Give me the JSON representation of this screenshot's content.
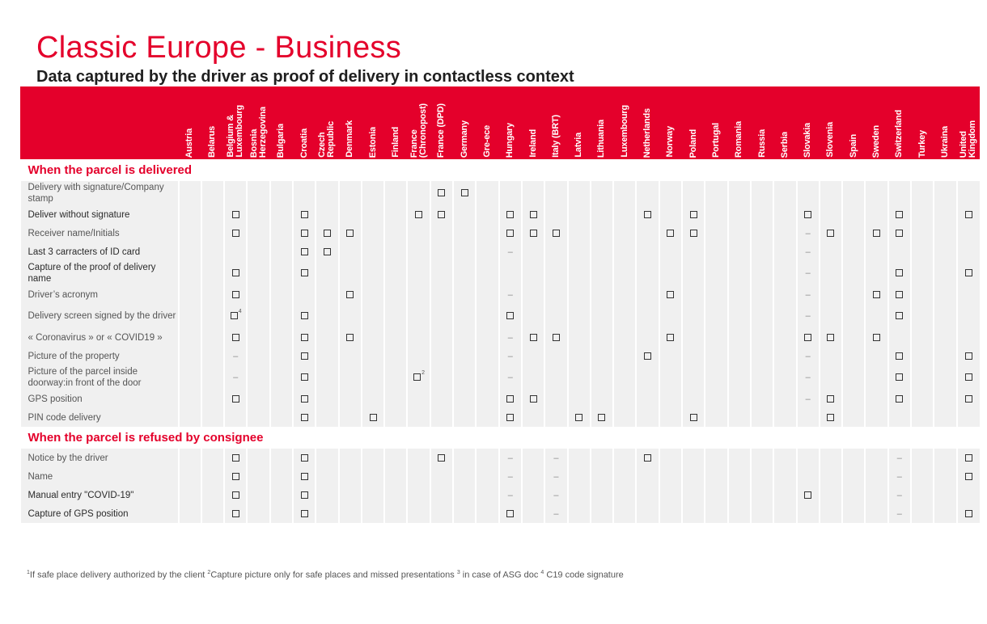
{
  "page": {
    "title": "Classic Europe - Business",
    "subtitle": "Data captured by the driver as proof of delivery in contactless context"
  },
  "colors": {
    "brand_red": "#e4002b",
    "row_bg": "#f0f0f0"
  },
  "legend": {
    "check": "checkbox-icon",
    "dash": "–"
  },
  "countries": [
    "Austria",
    "Belarus",
    "Belgium &\nLuxembourg",
    "Bosnia\nHerzegovina",
    "Bulgaria",
    "Croatia",
    "Czech\nRepublic",
    "Denmark",
    "Estonia",
    "Finland",
    "France\n(Chronopost)",
    "France (DPD)",
    "Germany",
    "Gre-ece",
    "Hungary",
    "Ireland",
    "Italy (BRT)",
    "Latvia",
    "Lithuania",
    "Luxembourg",
    "Netherlands",
    "Norway",
    "Poland",
    "Portugal",
    "Romania",
    "Russia",
    "Serbia",
    "Slovakia",
    "Slovenia",
    "Spain",
    "Sweden",
    "Switzerland",
    "Turkey",
    "Ukraina",
    "United\nKingdom"
  ],
  "sections": [
    {
      "title": "When the parcel is delivered",
      "rows": [
        {
          "label": "Delivery with signature/Company stamp",
          "tall": true,
          "dark": false,
          "cells": {
            "11": "x",
            "12": "x"
          }
        },
        {
          "label": "Deliver without signature",
          "tall": false,
          "dark": true,
          "cells": {
            "2": "x",
            "5": "x",
            "10": "x",
            "11": "x",
            "14": "x",
            "15": "x",
            "20": "x",
            "22": "x",
            "27": "x",
            "31": "x",
            "34": "x"
          }
        },
        {
          "label": "Receiver name/Initials",
          "tall": false,
          "dark": false,
          "cells": {
            "2": "x",
            "5": "x",
            "6": "x",
            "7": "x",
            "14": "x",
            "15": "x",
            "16": "x",
            "21": "x",
            "22": "x",
            "27": "-",
            "28": "x",
            "30": "x",
            "31": "x"
          }
        },
        {
          "label": "Last 3 carracters of ID card",
          "tall": false,
          "dark": true,
          "cells": {
            "5": "x",
            "6": "x",
            "14": "-",
            "27": "-"
          }
        },
        {
          "label": "Capture of the proof of delivery name",
          "tall": true,
          "dark": true,
          "cells": {
            "2": "x",
            "5": "x",
            "27": "-",
            "31": "x",
            "34": "x"
          }
        },
        {
          "label": "Driver’s acronym",
          "tall": false,
          "dark": false,
          "cells": {
            "2": "x",
            "7": "x",
            "14": "-",
            "21": "x",
            "27": "-",
            "30": "x",
            "31": "x"
          }
        },
        {
          "label": "Delivery screen signed by the driver",
          "tall": true,
          "dark": false,
          "cells": {
            "2": "x4",
            "5": "x",
            "14": "x",
            "27": "-",
            "31": "x"
          }
        },
        {
          "label": "« Coronavirus » or « COVID19 »",
          "tall": false,
          "dark": false,
          "cells": {
            "2": "x",
            "5": "x",
            "7": "x",
            "14": "-",
            "15": "x",
            "16": "x",
            "21": "x",
            "27": "x",
            "28": "x",
            "30": "x"
          }
        },
        {
          "label": "Picture of the property",
          "tall": false,
          "dark": false,
          "cells": {
            "2": "-",
            "5": "x",
            "14": "-",
            "20": "x",
            "27": "-",
            "31": "x",
            "34": "x"
          }
        },
        {
          "label": "Picture of the parcel inside doorway:in front of the door",
          "tall": true,
          "dark": false,
          "cells": {
            "2": "-",
            "5": "x",
            "10": "x2",
            "14": "-",
            "27": "-",
            "31": "x",
            "34": "x"
          }
        },
        {
          "label": "GPS position",
          "tall": false,
          "dark": false,
          "cells": {
            "2": "x",
            "5": "x",
            "14": "x",
            "15": "x",
            "27": "-",
            "28": "x",
            "31": "x",
            "34": "x"
          }
        },
        {
          "label": "PIN code delivery",
          "tall": false,
          "dark": false,
          "cells": {
            "5": "x",
            "8": "x",
            "14": "x",
            "17": "x",
            "18": "x",
            "22": "x",
            "28": "x"
          }
        }
      ]
    },
    {
      "title": "When the parcel is refused by consignee",
      "rows": [
        {
          "label": "Notice by the driver",
          "tall": false,
          "dark": false,
          "cells": {
            "2": "x",
            "5": "x",
            "11": "x",
            "14": "-",
            "16": "-",
            "20": "x",
            "31": "-",
            "34": "x"
          }
        },
        {
          "label": "Name",
          "tall": false,
          "dark": false,
          "cells": {
            "2": "x",
            "5": "x",
            "14": "-",
            "16": "-",
            "31": "-",
            "34": "x"
          }
        },
        {
          "label": "Manual entry \"COVID-19\"",
          "tall": false,
          "dark": true,
          "cells": {
            "2": "x",
            "5": "x",
            "14": "-",
            "16": "-",
            "27": "x",
            "31": "-"
          }
        },
        {
          "label": "Capture of GPS position",
          "tall": false,
          "dark": true,
          "cells": {
            "2": "x",
            "5": "x",
            "14": "x",
            "16": "-",
            "31": "-",
            "34": "x"
          }
        }
      ]
    }
  ],
  "footnote": {
    "m1": "1",
    "t1": "If safe place delivery authorized by the client ",
    "m2": "2",
    "t2": "Capture picture only for safe places and missed presentations ",
    "m3": "3",
    "t3": " in case of ASG doc  ",
    "m4": "4",
    "t4": " C19 code  signature"
  }
}
